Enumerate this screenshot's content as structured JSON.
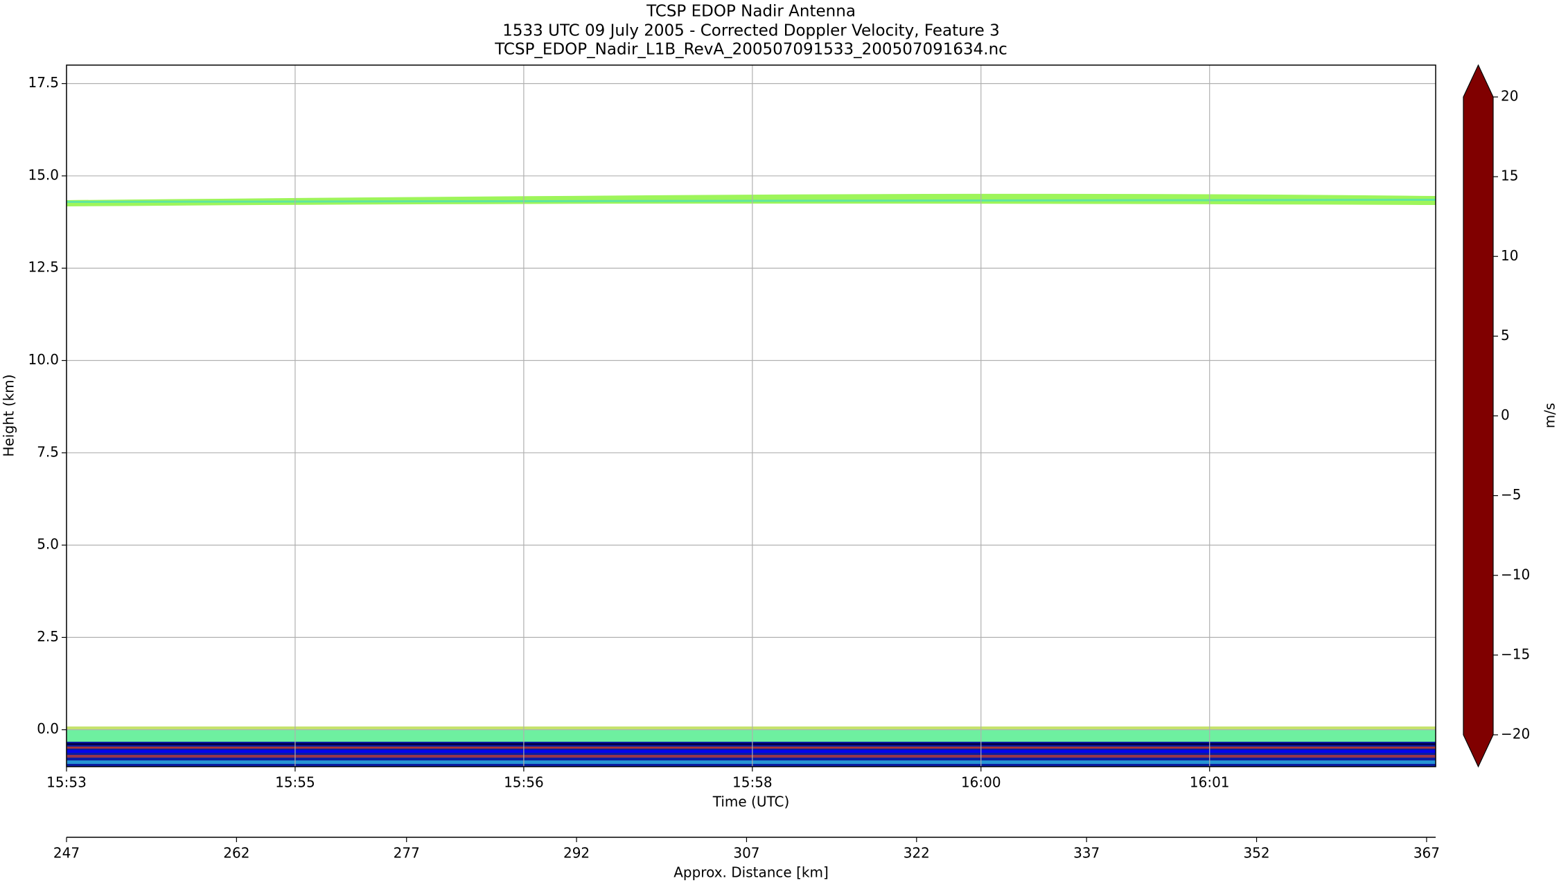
{
  "chart_data": {
    "type": "heatmap",
    "title": [
      "TCSP EDOP Nadir Antenna",
      "1533 UTC 09 July 2005 - Corrected Doppler Velocity, Feature 3",
      "TCSP_EDOP_Nadir_L1B_RevA_200507091533_200507091634.nc"
    ],
    "ylabel": "Height (km)",
    "xlabel": "Time (UTC)",
    "x2label": "Approx. Distance [km]",
    "colorbar_label": "m/s",
    "colormap": "jet",
    "ylim": [
      -1,
      18
    ],
    "yticks": [
      {
        "value": 0,
        "label": "0.0"
      },
      {
        "value": 2.5,
        "label": "2.5"
      },
      {
        "value": 5,
        "label": "5.0"
      },
      {
        "value": 7.5,
        "label": "7.5"
      },
      {
        "value": 10,
        "label": "10.0"
      },
      {
        "value": 12.5,
        "label": "12.5"
      },
      {
        "value": 15,
        "label": "15.0"
      },
      {
        "value": 17.5,
        "label": "17.5"
      }
    ],
    "xlim": [
      0,
      539
    ],
    "xticks": [
      {
        "value": 0,
        "label": "15:53"
      },
      {
        "value": 90,
        "label": "15:55"
      },
      {
        "value": 180,
        "label": "15:56"
      },
      {
        "value": 270,
        "label": "15:58"
      },
      {
        "value": 360,
        "label": "16:00"
      },
      {
        "value": 450,
        "label": "16:01"
      }
    ],
    "x2lim": [
      247,
      367.8
    ],
    "x2ticks": [
      247,
      262,
      277,
      292,
      307,
      322,
      337,
      352,
      367
    ],
    "clim": [
      -20,
      20
    ],
    "cticks": [
      20,
      15,
      10,
      5,
      0,
      {
        "value": -5,
        "label": "−5"
      },
      {
        "value": -10,
        "label": "−10"
      },
      {
        "value": -15,
        "label": "−15"
      },
      {
        "value": -20,
        "label": "−20"
      }
    ],
    "grid": true
  }
}
